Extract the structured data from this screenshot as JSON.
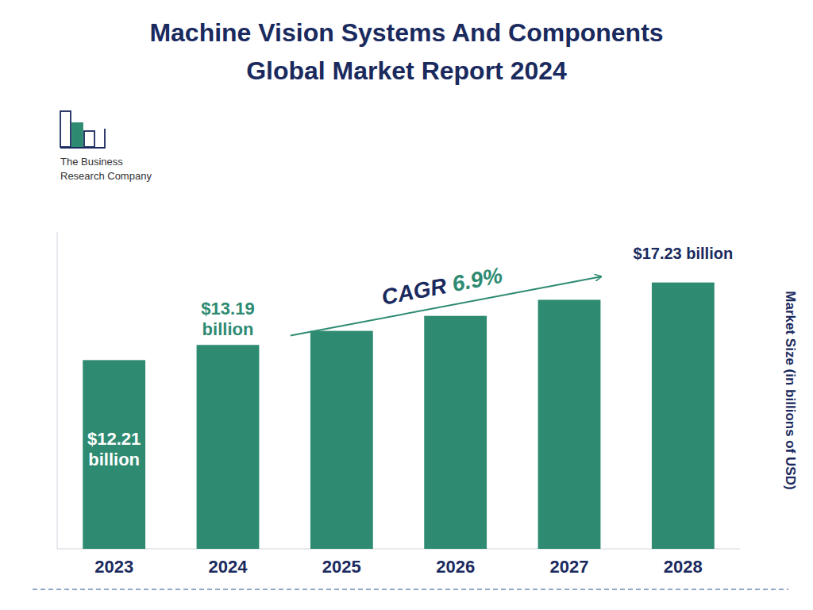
{
  "chart_data": {
    "type": "bar",
    "title": "Machine Vision Systems And Components",
    "subtitle": "Global Market Report 2024",
    "categories": [
      "2023",
      "2024",
      "2025",
      "2026",
      "2027",
      "2028"
    ],
    "values": [
      12.21,
      13.19,
      14.1,
      15.07,
      16.11,
      17.23
    ],
    "color": "#2e8b72",
    "ylim": [
      0,
      20.5
    ],
    "ylabel": "Market Size (in billions of USD)",
    "tick_labels": "x",
    "annotations": [
      [
        "$12.21",
        "billion"
      ],
      [
        "$13.19",
        "billion"
      ],
      [
        "$17.23 billion"
      ],
      [
        "CAGR ",
        "6.9%"
      ],
      [
        "The Business",
        "Research Company"
      ]
    ]
  }
}
